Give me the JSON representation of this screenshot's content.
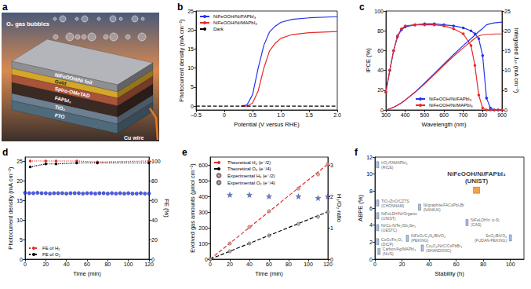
{
  "chart_data": [
    {
      "panel": "a",
      "type": "diagram",
      "bubbles_label": "O₂ gas bubbles",
      "layers": [
        "NiFeOOH/Ni foil",
        "Gold",
        "Spiro-OMeTAD",
        "FAPbI₃",
        "TiO₂",
        "FTO"
      ],
      "wire_label": "Cu wire"
    },
    {
      "panel": "b",
      "type": "line",
      "x_label": "Potential (V versus RHE)",
      "y_label": "Photocurrent density (mA cm⁻²)",
      "x": [
        -0.5,
        0,
        0.3,
        0.4,
        0.5,
        0.6,
        0.7,
        0.8,
        0.9,
        1.0,
        1.2,
        1.5,
        2.0
      ],
      "xlim": [
        -0.5,
        2
      ],
      "xticks": [
        {
          "value": -0.5,
          "label": "–0.5"
        },
        0,
        0.5,
        {
          "value": 1,
          "label": "1.0"
        },
        1.5,
        {
          "value": 2,
          "label": "2.0"
        }
      ],
      "ylim": [
        -1,
        25
      ],
      "yticks": [
        0,
        5,
        10,
        15,
        20,
        25
      ],
      "grid": false,
      "legend": "upper left",
      "series": [
        {
          "name": "NiFeOOH/Ni/FAPbI₃",
          "color": "#2233ee",
          "marker": "none",
          "values": [
            null,
            null,
            0,
            0.3,
            3,
            10,
            16,
            19.5,
            21,
            22,
            22.8,
            23.2,
            23.5
          ]
        },
        {
          "name": "NiFeOOH/Ni/MAPbI₃",
          "color": "#e62a2a",
          "marker": "none",
          "values": [
            null,
            null,
            0,
            0,
            0.8,
            4,
            10,
            14.5,
            16.5,
            17.8,
            18.8,
            19.3,
            19.6
          ]
        },
        {
          "name": "Dark",
          "color": "#000000",
          "marker": "none",
          "line_style": "dashed",
          "values": [
            0,
            0,
            0,
            0,
            0,
            0,
            0,
            0,
            0,
            0,
            0,
            0,
            0
          ]
        }
      ]
    },
    {
      "panel": "c",
      "type": "line",
      "x_label": "Wavelength (nm)",
      "y_label": "IPCE (%)",
      "y2_label": "Integrated Jₚₕ (mA cm⁻²)",
      "x": [
        300,
        320,
        340,
        360,
        380,
        400,
        450,
        500,
        550,
        600,
        650,
        700,
        740,
        760,
        780,
        800,
        820,
        840,
        860,
        880,
        900
      ],
      "xlim": [
        300,
        900
      ],
      "xticks": [
        300,
        400,
        500,
        600,
        700,
        800,
        900
      ],
      "ylim": [
        0,
        100
      ],
      "yticks": [
        0,
        20,
        40,
        60,
        80,
        100
      ],
      "y2lim": [
        0,
        25
      ],
      "y2ticks": [
        0,
        5,
        10,
        15,
        20,
        25
      ],
      "grid": false,
      "legend": "lower center",
      "series": [
        {
          "name": "NiFeOOH/Ni/FAPbI₃",
          "color": "#2233ee",
          "marker": "circle",
          "values": [
            18,
            40,
            60,
            74,
            81,
            84,
            86,
            87,
            87,
            86,
            85,
            83,
            80,
            77,
            72,
            55,
            12,
            2,
            0,
            0,
            0
          ]
        },
        {
          "name": "NiFeOOH/Ni/MAPbI₃",
          "color": "#e62a2a",
          "marker": "circle",
          "values": [
            18,
            40,
            60,
            75,
            82,
            85,
            86,
            86,
            86,
            85,
            82,
            77,
            65,
            45,
            15,
            2,
            0,
            0,
            0,
            0,
            0
          ]
        },
        {
          "color": "#2233ee",
          "axis": "y2",
          "marker": "none",
          "values": [
            0,
            0.3,
            0.7,
            1.2,
            1.8,
            2.5,
            4.5,
            6.8,
            9.2,
            11.6,
            14.0,
            16.3,
            18.0,
            18.9,
            19.8,
            20.6,
            21.5,
            21.8,
            22.0,
            22.1,
            22.2
          ]
        },
        {
          "color": "#e62a2a",
          "axis": "y2",
          "marker": "none",
          "values": [
            0,
            0.3,
            0.7,
            1.2,
            1.8,
            2.5,
            4.4,
            6.6,
            8.9,
            11.3,
            13.6,
            15.7,
            17.3,
            18.1,
            18.7,
            19.0,
            19.1,
            19.1,
            19.2,
            19.2,
            19.2
          ]
        }
      ]
    },
    {
      "panel": "d",
      "type": "line",
      "x_label": "Time (min)",
      "y_label": "Photocurrent density (mA cm⁻²)",
      "y2_label": "FE (%)",
      "xlim": [
        0,
        120
      ],
      "xticks": [
        0,
        20,
        40,
        60,
        80,
        100,
        120
      ],
      "ylim": [
        0,
        26
      ],
      "yticks": [
        0,
        5,
        10,
        15,
        20,
        25
      ],
      "y2lim": [
        0,
        104
      ],
      "y2ticks": [
        0,
        20,
        40,
        60,
        80,
        100
      ],
      "grid": false,
      "legend": "lower left",
      "series": [
        {
          "color": "#2233ee",
          "type": "scatter",
          "marker": "circle",
          "x": [
            0,
            4,
            8,
            12,
            16,
            20,
            24,
            28,
            32,
            36,
            40,
            44,
            48,
            52,
            56,
            60,
            64,
            68,
            72,
            76,
            80,
            84,
            88,
            92,
            96,
            100,
            104,
            108,
            112,
            116,
            120
          ],
          "values": [
            16.9,
            16.8,
            16.8,
            16.9,
            16.8,
            16.8,
            16.7,
            16.8,
            16.8,
            16.8,
            16.7,
            16.8,
            16.8,
            16.8,
            16.7,
            16.8,
            16.8,
            16.7,
            16.8,
            16.8,
            16.7,
            16.8,
            16.7,
            16.8,
            16.7,
            16.8,
            16.7,
            16.7,
            16.8,
            16.7,
            16.7
          ]
        },
        {
          "name": "FE of H₂",
          "color": "#e62a2a",
          "axis": "y2",
          "marker": "circle",
          "line_style": "dotted",
          "x": [
            5,
            20,
            30,
            50,
            70,
            120
          ],
          "values": [
            100,
            100,
            100,
            100,
            99,
            100
          ]
        },
        {
          "name": "FE of O₂",
          "color": "#000000",
          "axis": "y2",
          "marker": "circle",
          "line_style": "dotted",
          "x": [
            5,
            20,
            30,
            50,
            70,
            120
          ],
          "values": [
            94,
            97,
            97,
            98,
            98,
            98
          ]
        }
      ]
    },
    {
      "panel": "e",
      "type": "line",
      "x_label": "Time (min)",
      "y_label": "Evolved gas amounts (μmol cm⁻²)",
      "y2_label": "H₂/O₂ ratio",
      "xlim": [
        0,
        120
      ],
      "xticks": [
        0,
        20,
        40,
        60,
        80,
        100,
        120
      ],
      "ylim": [
        0,
        650
      ],
      "yticks": [
        0,
        100,
        200,
        300,
        400,
        500,
        600
      ],
      "y2lim": [
        0,
        3.25
      ],
      "y2ticks": [
        0,
        1,
        2,
        3
      ],
      "grid": false,
      "legend": "upper left",
      "series": [
        {
          "name": "Theoretical H₂ (e⁻/2)",
          "color": "#e62a2a",
          "marker": "none",
          "line_style": "dashed",
          "x": [
            0,
            120
          ],
          "values": [
            0,
            605
          ]
        },
        {
          "name": "Theoretical O₂ (e⁻/4)",
          "color": "#000000",
          "marker": "none",
          "line_style": "dashed",
          "x": [
            0,
            120
          ],
          "values": [
            0,
            302
          ]
        },
        {
          "name": "Experimental H₂ (e⁻/2)",
          "color": "#f08a8a",
          "type": "scatter",
          "marker": "circle",
          "x": [
            0,
            20,
            40,
            60,
            90,
            110,
            120
          ],
          "values": [
            0,
            100,
            205,
            305,
            450,
            540,
            605
          ]
        },
        {
          "name": "Experimental O₂ (e⁻/4)",
          "color": "#a0a0a0",
          "type": "scatter",
          "marker": "circle",
          "x": [
            0,
            20,
            40,
            60,
            90,
            110,
            120
          ],
          "values": [
            0,
            50,
            100,
            150,
            225,
            270,
            300
          ]
        },
        {
          "color": "#3b5bdb",
          "type": "scatter",
          "axis": "y2",
          "marker": "star",
          "x": [
            20,
            40,
            60,
            90,
            110,
            120
          ],
          "values": [
            2.05,
            2.05,
            2.0,
            2.0,
            1.95,
            2.0
          ]
        }
      ]
    },
    {
      "panel": "f",
      "type": "scatter",
      "x_label": "Stability (h)",
      "y_label": "ABPE (%)",
      "xlim": [
        0,
        110
      ],
      "xticks": [
        0,
        20,
        40,
        60,
        80,
        100
      ],
      "ylim": [
        0,
        12
      ],
      "yticks": [
        0,
        2,
        4,
        6,
        8,
        10,
        12
      ],
      "grid": false,
      "series": [
        {
          "color": "#8fb3e8",
          "marker": "bar",
          "x": [
            2,
            2,
            33,
            2,
            68,
            2,
            24,
            2,
            35,
            3,
            100
          ],
          "values": [
            11.1,
            6.6,
            6.1,
            5.1,
            4.3,
            3.7,
            2.45,
            2.05,
            1.3,
            0.9,
            2.5
          ],
          "labels": [
            "IrO₂/FAMAPbI₃\n(RICE)",
            "TiO₂/ZnO/CZTS\n(CHONNAM)",
            "Ni/graphite/FACsPbI₃Br\n(NANKAI)",
            "NiFeLDH/Ni/Organic\n(UNIST)",
            "NiFeLDH/n⁺p-Si\n(CAS)",
            "Ni/Cu-NiTe₂/Sb₂Se₃\n(UESTC)",
            "NiFeOₓ/C₃N₄/BiVO₄\n(PEKING)",
            "CoOₓ/Fe₂O₃\n(DICP)",
            "Co₃O₄/Ni/C/CsPbBr₃\n(SHANDONG)",
            "Carbon/Ag/MAPbI₃\n(NUS)",
            "SnO₂/BiVO₄\n(FUDAN-PEKING)"
          ]
        },
        {
          "color": "#f28a1e",
          "marker": "square",
          "x": [
            75
          ],
          "values": [
            8.1
          ],
          "labels": [
            "NiFeOOH/Ni/FAPbI₃\n(UNIST)"
          ]
        }
      ]
    }
  ]
}
